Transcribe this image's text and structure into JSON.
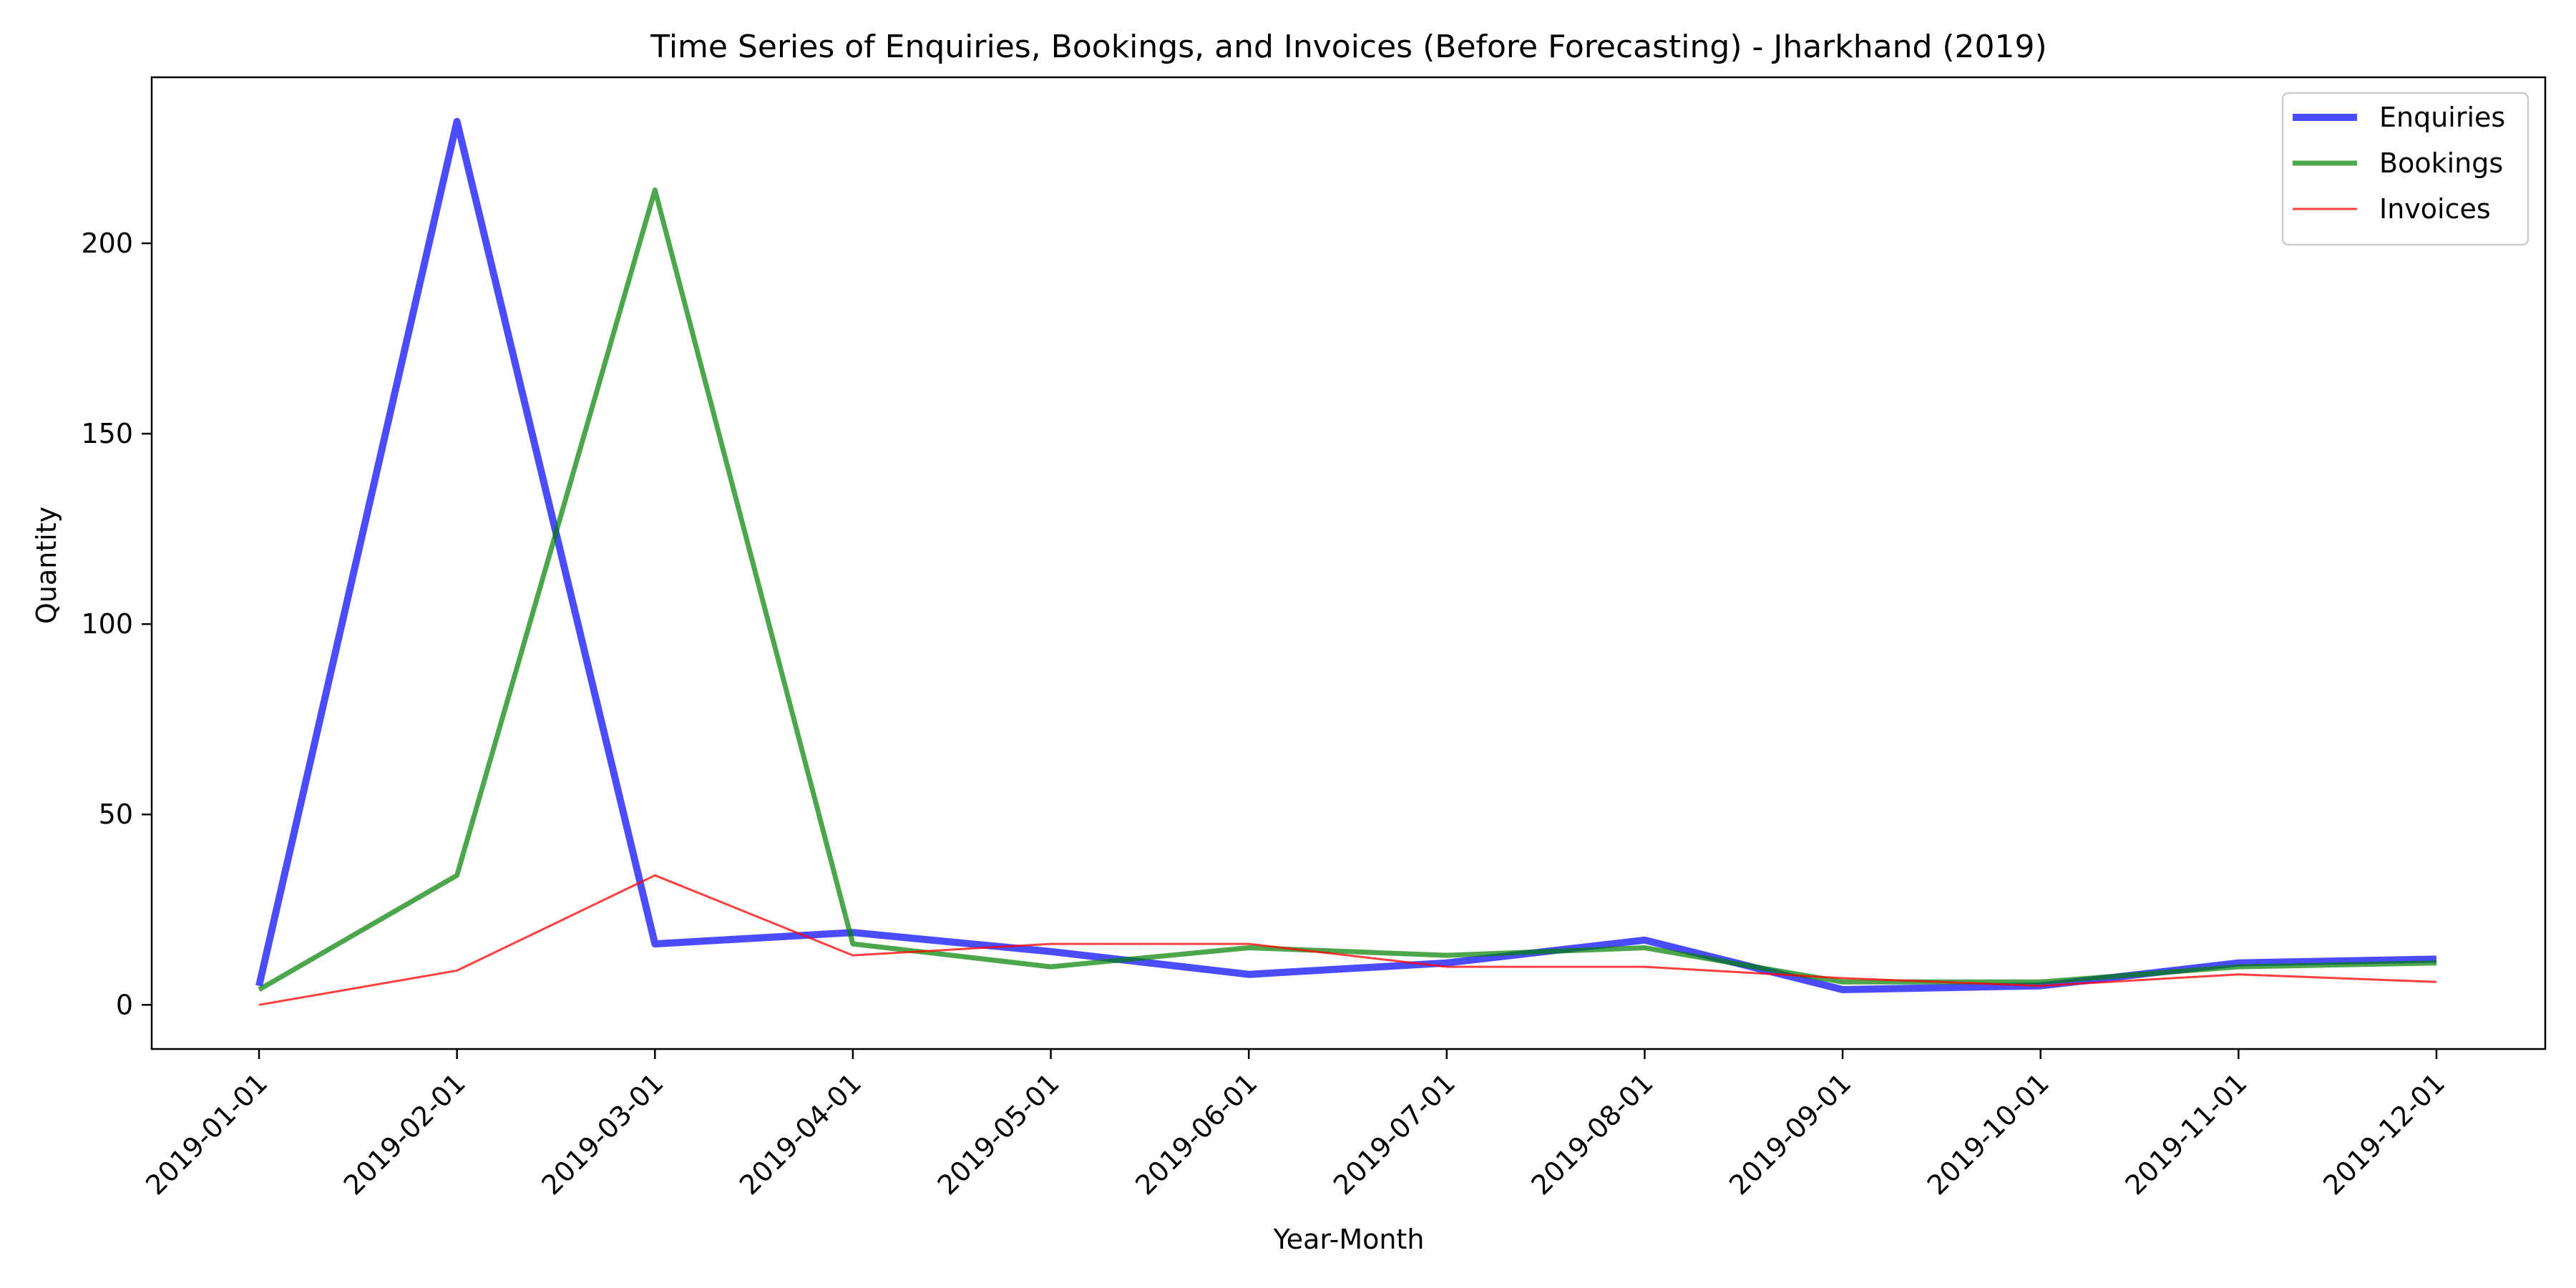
{
  "chart_data": {
    "type": "line",
    "title": "Time Series of Enquiries, Bookings, and Invoices (Before Forecasting) - Jharkhand (2019)",
    "xlabel": "Year-Month",
    "ylabel": "Quantity",
    "x": [
      "2019-01-01",
      "2019-02-01",
      "2019-03-01",
      "2019-04-01",
      "2019-05-01",
      "2019-06-01",
      "2019-07-01",
      "2019-08-01",
      "2019-09-01",
      "2019-10-01",
      "2019-11-01",
      "2019-12-01"
    ],
    "ylim": [
      -11.6,
      243.6
    ],
    "yticks": [
      0,
      50,
      100,
      150,
      200
    ],
    "grid": false,
    "legend_position": "top-right",
    "series": [
      {
        "name": "Enquiries",
        "color": "#0000ff",
        "opacity": 0.7,
        "width": "thick",
        "values": [
          5,
          232,
          16,
          19,
          14,
          8,
          11,
          17,
          4,
          5,
          11,
          12
        ]
      },
      {
        "name": "Bookings",
        "color": "#008000",
        "opacity": 0.7,
        "width": "medium",
        "values": [
          4,
          34,
          214,
          16,
          10,
          15,
          13,
          15,
          6,
          6,
          10,
          11
        ]
      },
      {
        "name": "Invoices",
        "color": "#ff0000",
        "opacity": 0.75,
        "width": "thin",
        "values": [
          0,
          9,
          34,
          13,
          16,
          16,
          10,
          10,
          7,
          5,
          8,
          6
        ]
      }
    ]
  }
}
